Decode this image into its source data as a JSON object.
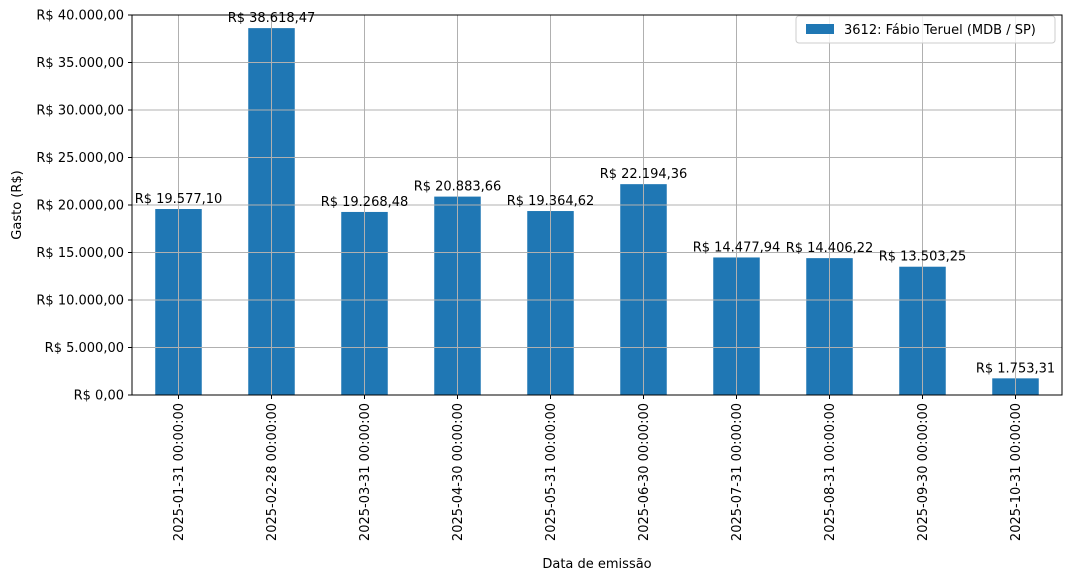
{
  "chart_data": {
    "type": "bar",
    "categories": [
      "2025-01-31 00:00:00",
      "2025-02-28 00:00:00",
      "2025-03-31 00:00:00",
      "2025-04-30 00:00:00",
      "2025-05-31 00:00:00",
      "2025-06-30 00:00:00",
      "2025-07-31 00:00:00",
      "2025-08-31 00:00:00",
      "2025-09-30 00:00:00",
      "2025-10-31 00:00:00"
    ],
    "series": [
      {
        "name": "3612: Fábio Teruel (MDB / SP)",
        "color": "#1f77b4",
        "values": [
          19577.1,
          38618.47,
          19268.48,
          20883.66,
          19364.62,
          22194.36,
          14477.94,
          14406.22,
          13503.25,
          1753.31
        ]
      }
    ],
    "data_labels": [
      "R$ 19.577,10",
      "R$ 38.618,47",
      "R$ 19.268,48",
      "R$ 20.883,66",
      "R$ 19.364,62",
      "R$ 22.194,36",
      "R$ 14.477,94",
      "R$ 14.406,22",
      "R$ 13.503,25",
      "R$ 1.753,31"
    ],
    "xlabel": "Data de emissão",
    "ylabel": "Gasto (R$)",
    "ylim": [
      0,
      40000
    ],
    "yticks": [
      0,
      5000,
      10000,
      15000,
      20000,
      25000,
      30000,
      35000,
      40000
    ],
    "ytick_labels": [
      "R$ 0,00",
      "R$ 5.000,00",
      "R$ 10.000,00",
      "R$ 15.000,00",
      "R$ 20.000,00",
      "R$ 25.000,00",
      "R$ 30.000,00",
      "R$ 35.000,00",
      "R$ 40.000,00"
    ],
    "grid": true,
    "legend_position": "top-right"
  }
}
